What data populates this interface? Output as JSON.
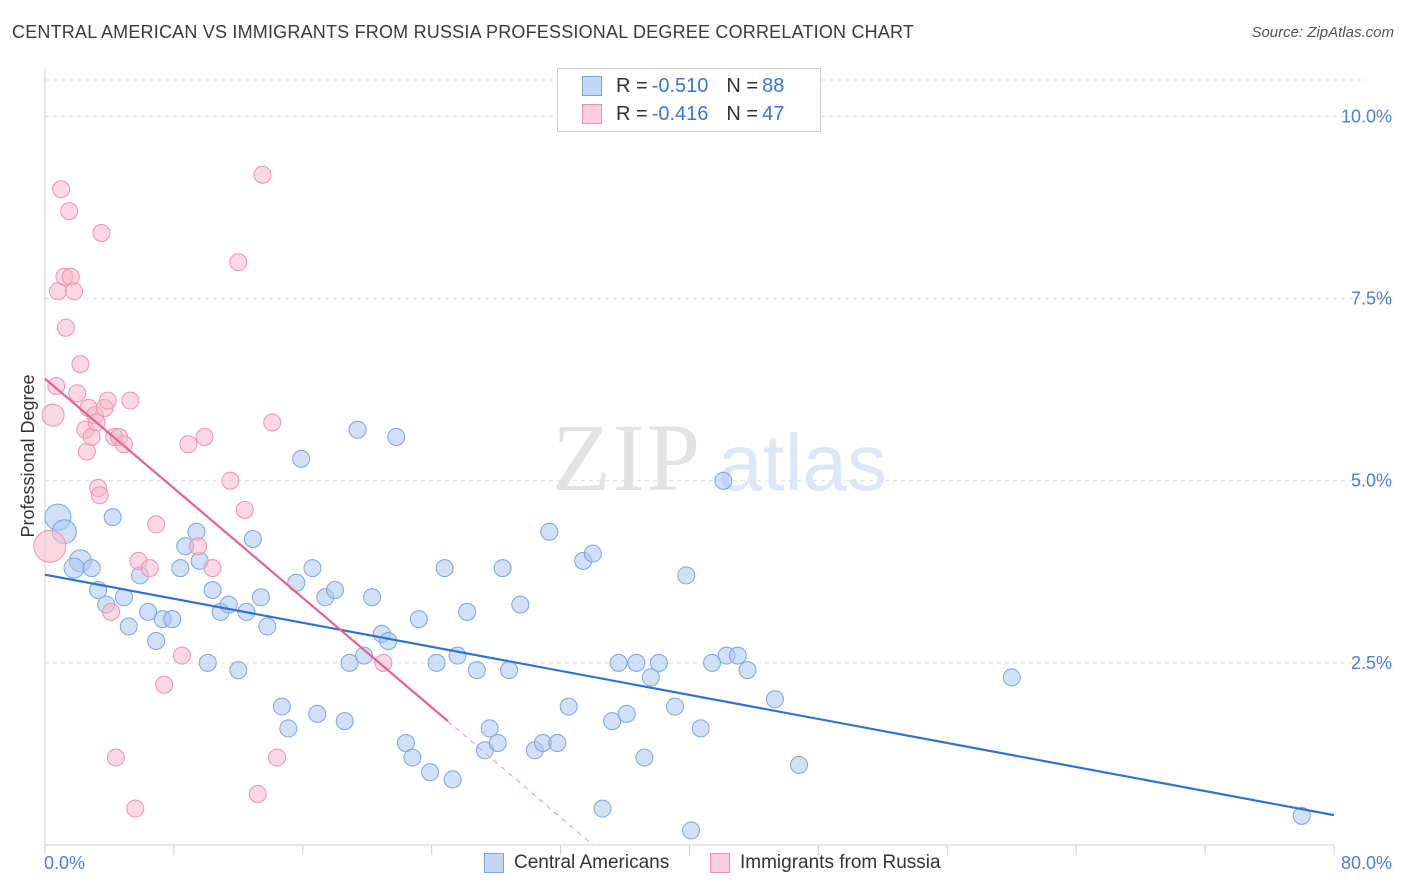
{
  "header": {
    "title": "CENTRAL AMERICAN VS IMMIGRANTS FROM RUSSIA PROFESSIONAL DEGREE CORRELATION CHART",
    "source": "Source: ZipAtlas.com"
  },
  "watermark": {
    "zip": "ZIP",
    "atlas": "atlas"
  },
  "legend": {
    "series1": {
      "r_label": "R = ",
      "r_value": "-0.510",
      "n_label": "N = ",
      "n_value": "88"
    },
    "series2": {
      "r_label": "R = ",
      "r_value": "-0.416",
      "n_label": "N = ",
      "n_value": "47"
    }
  },
  "bottom_legend": {
    "series1": "Central Americans",
    "series2": "Immigrants from Russia"
  },
  "colors": {
    "blue_fill": "#a9c6f0",
    "blue_stroke": "#7aa5e3",
    "blue_line": "#2e72d2",
    "pink_fill": "#f7b8cb",
    "pink_stroke": "#ee92ae",
    "pink_line": "#e8618f",
    "tick_text": "#4a7fd6",
    "grid": "#dcdcdc"
  },
  "chart_data": {
    "type": "scatter",
    "ylabel": "Professional Degree",
    "xlim": [
      0,
      80
    ],
    "ylim": [
      0,
      10.5
    ],
    "x_tick_labels": [
      "0.0%",
      "80.0%"
    ],
    "y_ticks": [
      2.5,
      5.0,
      7.5,
      10.0
    ],
    "y_tick_labels": [
      "2.5%",
      "5.0%",
      "7.5%",
      "10.0%"
    ],
    "grid": true,
    "series": [
      {
        "name": "Central Americans",
        "color": "#a9c6f0",
        "trend": {
          "x": [
            0,
            80
          ],
          "y": [
            3.71,
            0.41
          ]
        },
        "points": [
          [
            0.8,
            4.5
          ],
          [
            1.2,
            4.3
          ],
          [
            2.2,
            3.9
          ],
          [
            1.8,
            3.8
          ],
          [
            2.9,
            3.8
          ],
          [
            3.3,
            3.5
          ],
          [
            4.2,
            4.5
          ],
          [
            3.8,
            3.3
          ],
          [
            4.9,
            3.4
          ],
          [
            5.2,
            3.0
          ],
          [
            5.9,
            3.7
          ],
          [
            6.4,
            3.2
          ],
          [
            6.9,
            2.8
          ],
          [
            7.3,
            3.1
          ],
          [
            7.9,
            3.1
          ],
          [
            8.4,
            3.8
          ],
          [
            8.7,
            4.1
          ],
          [
            9.6,
            3.9
          ],
          [
            9.4,
            4.3
          ],
          [
            10.1,
            2.5
          ],
          [
            10.4,
            3.5
          ],
          [
            10.9,
            3.2
          ],
          [
            11.4,
            3.3
          ],
          [
            12.0,
            2.4
          ],
          [
            12.5,
            3.2
          ],
          [
            12.9,
            4.2
          ],
          [
            13.4,
            3.4
          ],
          [
            13.8,
            3.0
          ],
          [
            14.7,
            1.9
          ],
          [
            15.1,
            1.6
          ],
          [
            15.6,
            3.6
          ],
          [
            15.9,
            5.3
          ],
          [
            16.6,
            3.8
          ],
          [
            16.9,
            1.8
          ],
          [
            17.4,
            3.4
          ],
          [
            18.0,
            3.5
          ],
          [
            18.6,
            1.7
          ],
          [
            18.9,
            2.5
          ],
          [
            19.4,
            5.7
          ],
          [
            19.8,
            2.6
          ],
          [
            20.3,
            3.4
          ],
          [
            20.9,
            2.9
          ],
          [
            21.3,
            2.8
          ],
          [
            21.8,
            5.6
          ],
          [
            22.4,
            1.4
          ],
          [
            22.8,
            1.2
          ],
          [
            23.2,
            3.1
          ],
          [
            23.9,
            1.0
          ],
          [
            24.3,
            2.5
          ],
          [
            24.8,
            3.8
          ],
          [
            25.3,
            0.9
          ],
          [
            25.6,
            2.6
          ],
          [
            26.2,
            3.2
          ],
          [
            26.8,
            2.4
          ],
          [
            27.3,
            1.3
          ],
          [
            27.6,
            1.6
          ],
          [
            28.1,
            1.4
          ],
          [
            28.4,
            3.8
          ],
          [
            28.8,
            2.4
          ],
          [
            29.5,
            3.3
          ],
          [
            30.4,
            1.3
          ],
          [
            30.9,
            1.4
          ],
          [
            31.3,
            4.3
          ],
          [
            31.8,
            1.4
          ],
          [
            32.5,
            1.9
          ],
          [
            33.4,
            3.9
          ],
          [
            34.0,
            4.0
          ],
          [
            34.6,
            0.5
          ],
          [
            35.2,
            1.7
          ],
          [
            35.6,
            2.5
          ],
          [
            36.1,
            1.8
          ],
          [
            36.7,
            2.5
          ],
          [
            37.2,
            1.2
          ],
          [
            37.6,
            2.3
          ],
          [
            38.1,
            2.5
          ],
          [
            39.1,
            1.9
          ],
          [
            39.8,
            3.7
          ],
          [
            40.1,
            0.2
          ],
          [
            40.7,
            1.6
          ],
          [
            41.4,
            2.5
          ],
          [
            42.1,
            5.0
          ],
          [
            42.3,
            2.6
          ],
          [
            43.6,
            2.4
          ],
          [
            45.3,
            2.0
          ],
          [
            46.8,
            1.1
          ],
          [
            60.0,
            2.3
          ],
          [
            78.0,
            0.4
          ],
          [
            43.0,
            2.6
          ]
        ]
      },
      {
        "name": "Immigrants from Russia",
        "color": "#f7b8cb",
        "trend": {
          "x": [
            0,
            25
          ],
          "y": [
            6.4,
            1.7
          ]
        },
        "trend_dashed": {
          "x": [
            25,
            34
          ],
          "y": [
            1.7,
            0.0
          ]
        },
        "points": [
          [
            0.3,
            4.1
          ],
          [
            0.5,
            5.9
          ],
          [
            0.7,
            6.3
          ],
          [
            0.8,
            7.6
          ],
          [
            1.0,
            9.0
          ],
          [
            1.2,
            7.8
          ],
          [
            1.3,
            7.1
          ],
          [
            1.5,
            8.7
          ],
          [
            1.6,
            7.8
          ],
          [
            1.8,
            7.6
          ],
          [
            2.0,
            6.2
          ],
          [
            2.2,
            6.6
          ],
          [
            2.5,
            5.7
          ],
          [
            2.6,
            5.4
          ],
          [
            2.7,
            6.0
          ],
          [
            2.9,
            5.6
          ],
          [
            3.1,
            5.9
          ],
          [
            3.2,
            5.8
          ],
          [
            3.3,
            4.9
          ],
          [
            3.4,
            4.8
          ],
          [
            3.5,
            8.4
          ],
          [
            3.7,
            6.0
          ],
          [
            3.9,
            6.1
          ],
          [
            4.1,
            3.2
          ],
          [
            4.3,
            5.6
          ],
          [
            4.4,
            1.2
          ],
          [
            4.6,
            5.6
          ],
          [
            4.9,
            5.5
          ],
          [
            5.3,
            6.1
          ],
          [
            5.6,
            0.5
          ],
          [
            5.8,
            3.9
          ],
          [
            6.5,
            3.8
          ],
          [
            6.9,
            4.4
          ],
          [
            7.4,
            2.2
          ],
          [
            8.5,
            2.6
          ],
          [
            8.9,
            5.5
          ],
          [
            9.5,
            4.1
          ],
          [
            9.9,
            5.6
          ],
          [
            10.4,
            3.8
          ],
          [
            11.5,
            5.0
          ],
          [
            12.0,
            8.0
          ],
          [
            12.4,
            4.6
          ],
          [
            13.2,
            0.7
          ],
          [
            13.5,
            9.2
          ],
          [
            14.1,
            5.8
          ],
          [
            14.4,
            1.2
          ],
          [
            21.0,
            2.5
          ]
        ]
      }
    ]
  }
}
